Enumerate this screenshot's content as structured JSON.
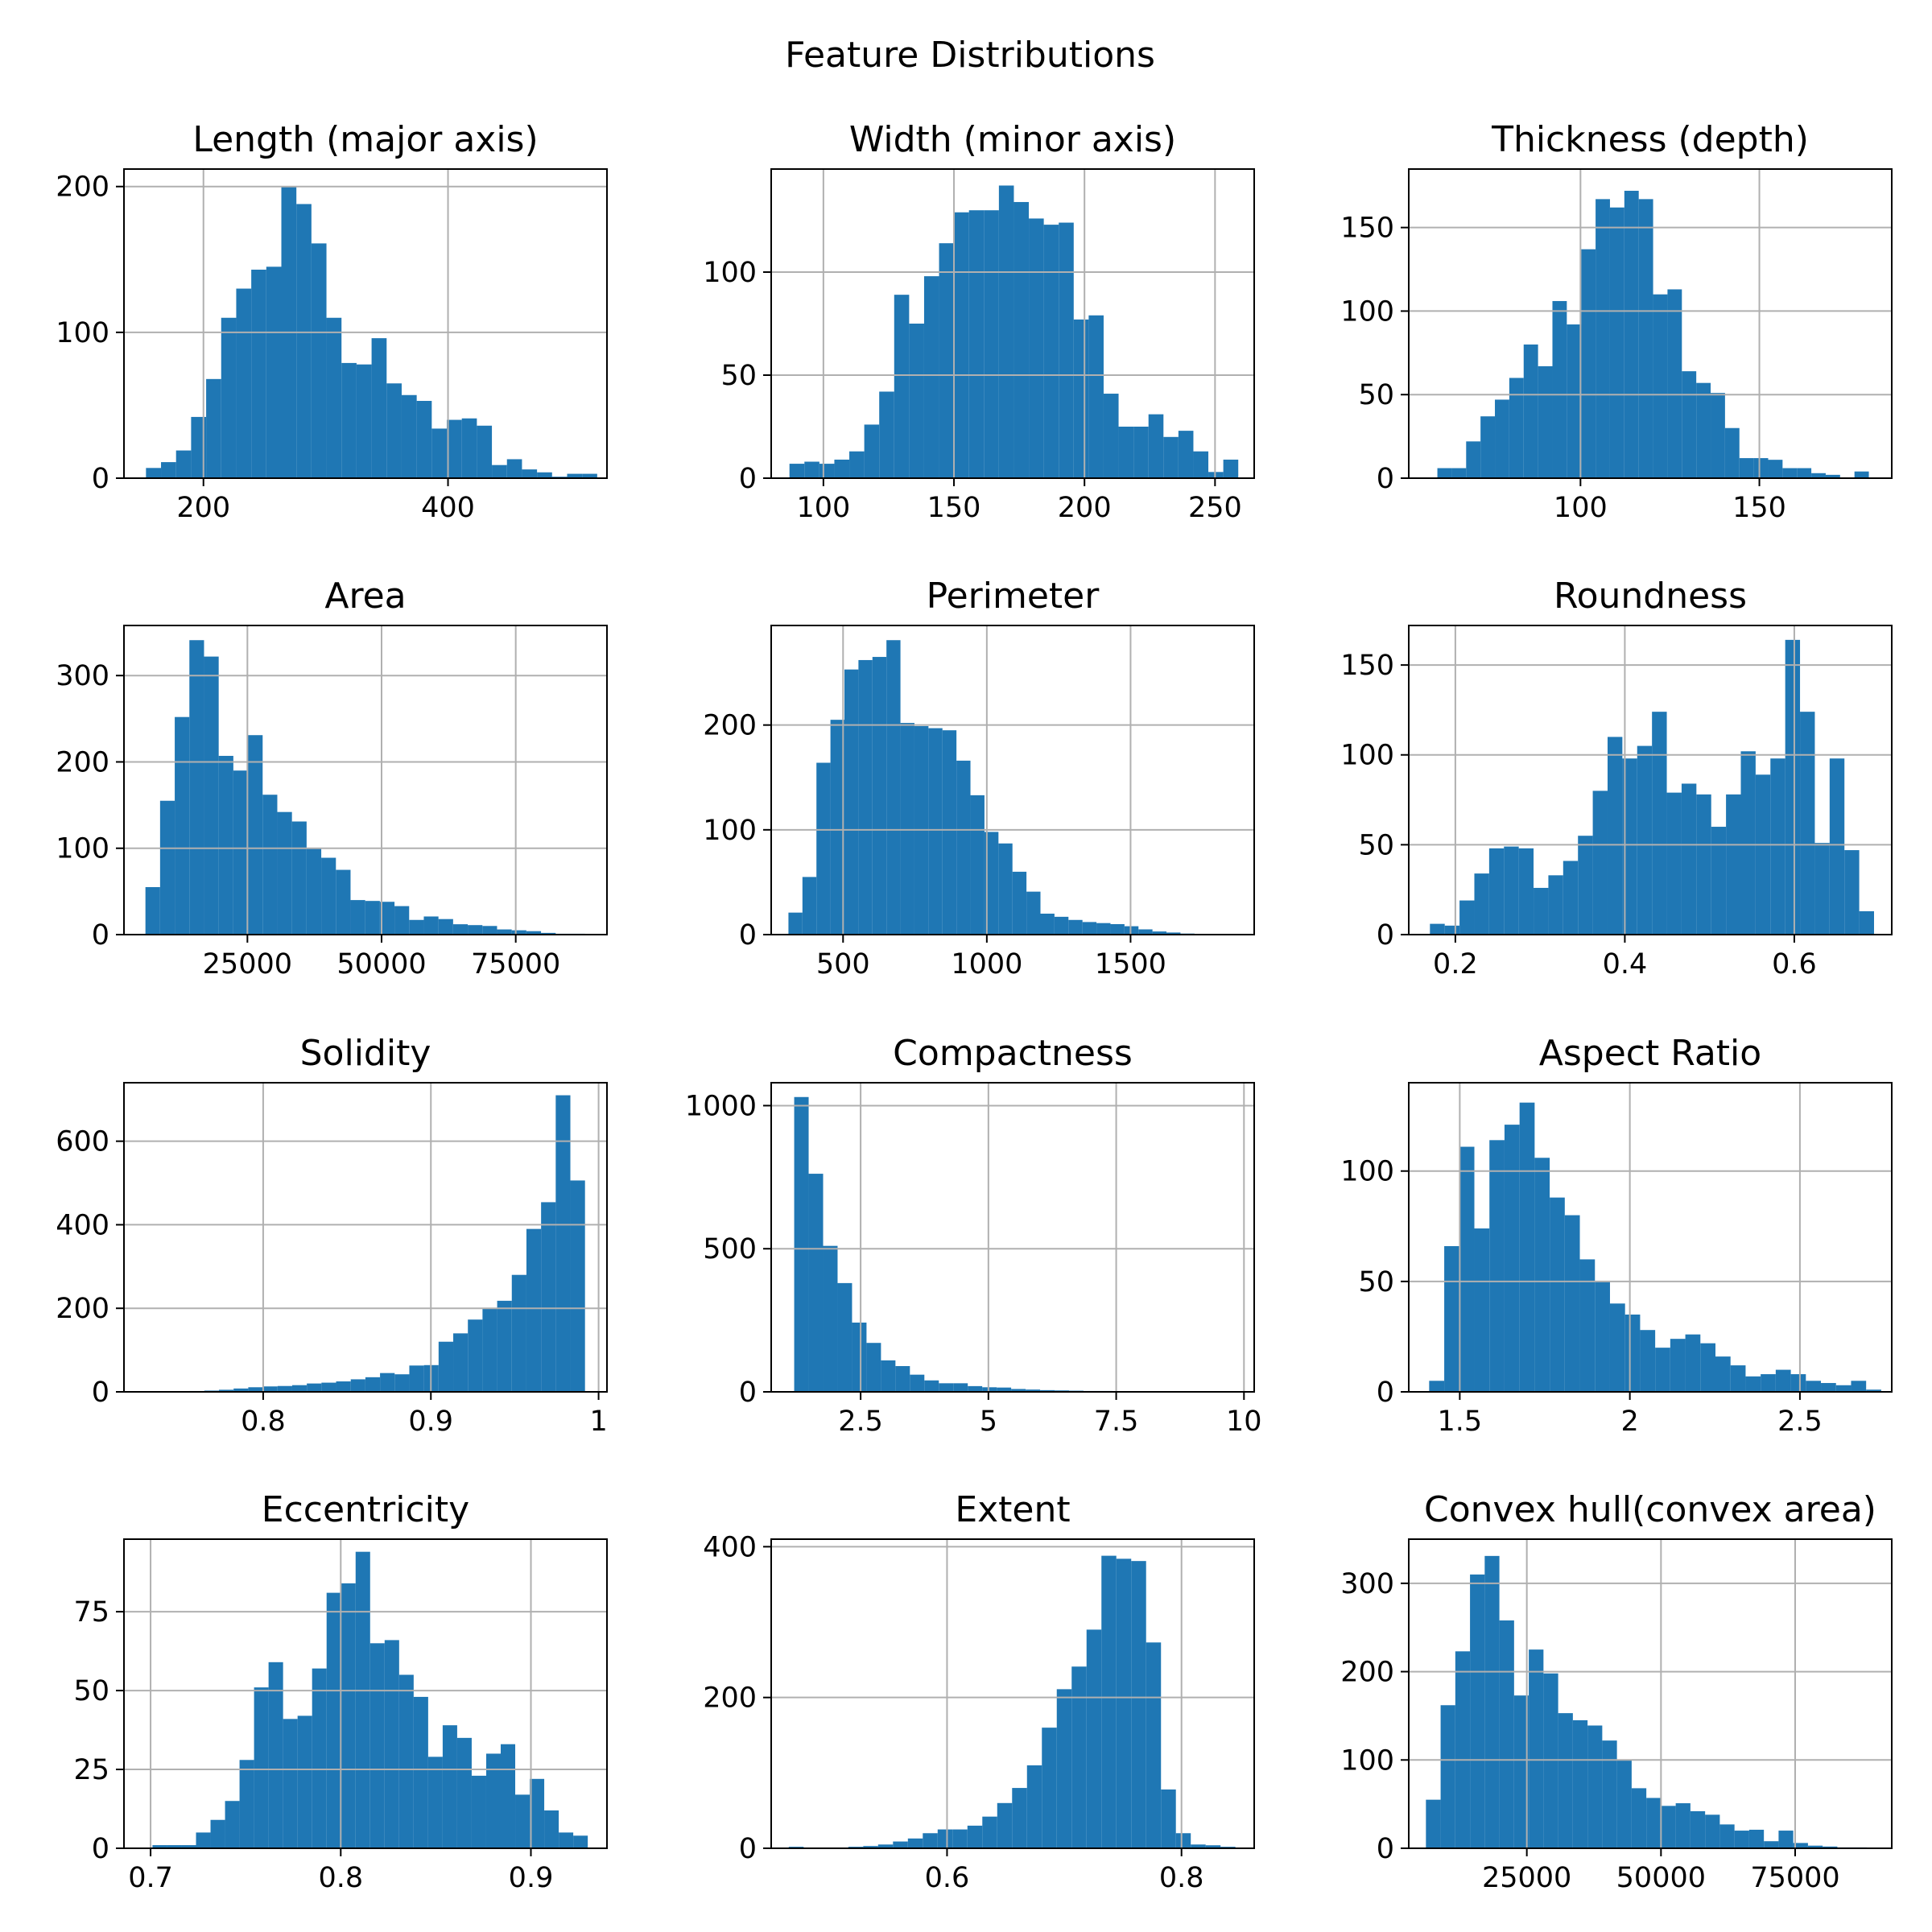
{
  "figure": {
    "title": "Feature Distributions",
    "bar_color": "#1f77b4",
    "grid_color": "#b0b0b0"
  },
  "chart_data": [
    {
      "type": "bar",
      "title": "Length (major axis)",
      "grid": true,
      "xlim": [
        135,
        530
      ],
      "ylim": [
        0,
        212
      ],
      "xticks": [
        200,
        400
      ],
      "yticks": [
        0,
        100,
        200
      ],
      "bin_start": 153,
      "bin_width": 12.3,
      "counts": [
        7,
        11,
        19,
        42,
        68,
        110,
        130,
        143,
        145,
        200,
        188,
        161,
        110,
        79,
        78,
        96,
        65,
        57,
        53,
        34,
        40,
        41,
        36,
        9,
        13,
        6,
        4,
        1,
        3,
        3
      ]
    },
    {
      "type": "bar",
      "title": "Width (minor axis)",
      "grid": true,
      "xlim": [
        80,
        265
      ],
      "ylim": [
        0,
        150
      ],
      "xticks": [
        100,
        150,
        200,
        250
      ],
      "yticks": [
        0,
        50,
        100
      ],
      "bin_start": 87,
      "bin_width": 5.73,
      "counts": [
        7,
        8,
        7,
        9,
        13,
        26,
        42,
        89,
        75,
        98,
        114,
        129,
        130,
        130,
        142,
        134,
        126,
        123,
        124,
        77,
        79,
        41,
        25,
        25,
        31,
        20,
        23,
        13,
        3,
        9
      ]
    },
    {
      "type": "bar",
      "title": "Thickness (depth)",
      "grid": true,
      "xlim": [
        52,
        187
      ],
      "ylim": [
        0,
        185
      ],
      "xticks": [
        100,
        150
      ],
      "yticks": [
        0,
        50,
        100,
        150
      ],
      "bin_start": 60,
      "bin_width": 4.02,
      "counts": [
        6,
        6,
        22,
        37,
        47,
        60,
        80,
        67,
        106,
        92,
        137,
        167,
        162,
        172,
        167,
        110,
        113,
        64,
        57,
        51,
        30,
        12,
        12,
        11,
        6,
        6,
        3,
        2,
        0,
        4
      ]
    },
    {
      "type": "bar",
      "title": "Area",
      "grid": true,
      "xlim": [
        2000,
        92000
      ],
      "ylim": [
        0,
        358
      ],
      "xticks": [
        25000,
        50000,
        75000
      ],
      "yticks": [
        0,
        100,
        200,
        300
      ],
      "bin_start": 6000,
      "bin_width": 2730,
      "counts": [
        55,
        155,
        252,
        341,
        322,
        207,
        190,
        231,
        162,
        142,
        131,
        100,
        89,
        75,
        40,
        39,
        38,
        33,
        17,
        21,
        18,
        12,
        11,
        10,
        6,
        5,
        4,
        2,
        1,
        1
      ]
    },
    {
      "type": "bar",
      "title": "Perimeter",
      "grid": true,
      "xlim": [
        250,
        1930
      ],
      "ylim": [
        0,
        295
      ],
      "xticks": [
        500,
        1000,
        1500
      ],
      "yticks": [
        0,
        100,
        200
      ],
      "bin_start": 310,
      "bin_width": 48.7,
      "counts": [
        21,
        55,
        164,
        205,
        253,
        262,
        265,
        281,
        202,
        199,
        197,
        195,
        166,
        133,
        98,
        87,
        60,
        41,
        20,
        17,
        14,
        12,
        11,
        10,
        8,
        5,
        3,
        2,
        1,
        0
      ]
    },
    {
      "type": "bar",
      "title": "Roundness",
      "grid": true,
      "xlim": [
        0.145,
        0.715
      ],
      "ylim": [
        0,
        172
      ],
      "xticks": [
        0.2,
        0.4,
        0.6
      ],
      "yticks": [
        0,
        50,
        100,
        150
      ],
      "bin_start": 0.17,
      "bin_width": 0.01747,
      "counts": [
        6,
        5,
        19,
        34,
        48,
        49,
        48,
        26,
        33,
        41,
        55,
        80,
        110,
        98,
        105,
        124,
        79,
        84,
        78,
        60,
        78,
        102,
        89,
        98,
        164,
        124,
        51,
        98,
        47,
        13
      ]
    },
    {
      "type": "bar",
      "title": "Solidity",
      "grid": true,
      "xlim": [
        0.717,
        1.005
      ],
      "ylim": [
        0,
        740
      ],
      "xticks": [
        0.8,
        0.9,
        1.0
      ],
      "yticks": [
        0,
        200,
        400,
        600
      ],
      "bin_start": 0.73,
      "bin_width": 0.00873,
      "counts": [
        1,
        0,
        1,
        2,
        3,
        5,
        8,
        11,
        13,
        14,
        16,
        20,
        22,
        25,
        30,
        35,
        45,
        42,
        63,
        64,
        120,
        140,
        173,
        200,
        218,
        280,
        390,
        454,
        710,
        506
      ]
    },
    {
      "type": "bar",
      "title": "Compactness",
      "grid": true,
      "xlim": [
        0.75,
        10.2
      ],
      "ylim": [
        0,
        1080
      ],
      "xticks": [
        2.5,
        5.0,
        7.5,
        10.0
      ],
      "yticks": [
        0,
        500,
        1000
      ],
      "bin_start": 1.2,
      "bin_width": 0.283,
      "counts": [
        1030,
        762,
        510,
        380,
        242,
        171,
        110,
        90,
        60,
        40,
        30,
        30,
        20,
        16,
        15,
        10,
        8,
        6,
        5,
        4,
        3,
        3,
        2,
        2,
        2,
        1,
        1,
        1,
        1,
        1
      ]
    },
    {
      "type": "bar",
      "title": "Aspect Ratio",
      "grid": true,
      "xlim": [
        1.35,
        2.77
      ],
      "ylim": [
        0,
        140
      ],
      "xticks": [
        1.5,
        2.0,
        2.5
      ],
      "yticks": [
        0,
        50,
        100
      ],
      "bin_start": 1.41,
      "bin_width": 0.0443,
      "counts": [
        5,
        66,
        111,
        74,
        114,
        121,
        131,
        106,
        88,
        80,
        60,
        50,
        40,
        35,
        28,
        20,
        24,
        26,
        22,
        16,
        12,
        7,
        8,
        10,
        8,
        5,
        4,
        3,
        5,
        1
      ]
    },
    {
      "type": "bar",
      "title": "Eccentricity",
      "grid": true,
      "xlim": [
        0.686,
        0.94
      ],
      "ylim": [
        0,
        98
      ],
      "xticks": [
        0.7,
        0.8,
        0.9
      ],
      "yticks": [
        0,
        25,
        50,
        75
      ],
      "bin_start": 0.701,
      "bin_width": 0.00763,
      "counts": [
        1,
        1,
        1,
        5,
        9,
        15,
        28,
        51,
        59,
        41,
        42,
        57,
        81,
        84,
        94,
        65,
        66,
        55,
        48,
        29,
        39,
        35,
        23,
        30,
        33,
        17,
        22,
        12,
        5,
        4
      ]
    },
    {
      "type": "bar",
      "title": "Extent",
      "grid": true,
      "xlim": [
        0.45,
        0.862
      ],
      "ylim": [
        0,
        410
      ],
      "xticks": [
        0.6,
        0.8
      ],
      "yticks": [
        0,
        200,
        400
      ],
      "bin_start": 0.465,
      "bin_width": 0.0127,
      "counts": [
        2,
        1,
        1,
        1,
        2,
        3,
        5,
        9,
        13,
        20,
        25,
        25,
        30,
        42,
        60,
        80,
        110,
        160,
        211,
        241,
        290,
        388,
        384,
        381,
        273,
        78,
        20,
        5,
        4,
        2
      ]
    },
    {
      "type": "bar",
      "title": "Convex hull(convex area)",
      "grid": true,
      "xlim": [
        3000,
        93000
      ],
      "ylim": [
        0,
        350
      ],
      "xticks": [
        25000,
        50000,
        75000
      ],
      "yticks": [
        0,
        100,
        200,
        300
      ],
      "bin_start": 6200,
      "bin_width": 2738,
      "counts": [
        55,
        162,
        223,
        310,
        331,
        258,
        173,
        225,
        198,
        153,
        145,
        139,
        122,
        100,
        68,
        57,
        48,
        51,
        42,
        38,
        27,
        20,
        21,
        8,
        20,
        6,
        3,
        2,
        1,
        1
      ]
    }
  ]
}
